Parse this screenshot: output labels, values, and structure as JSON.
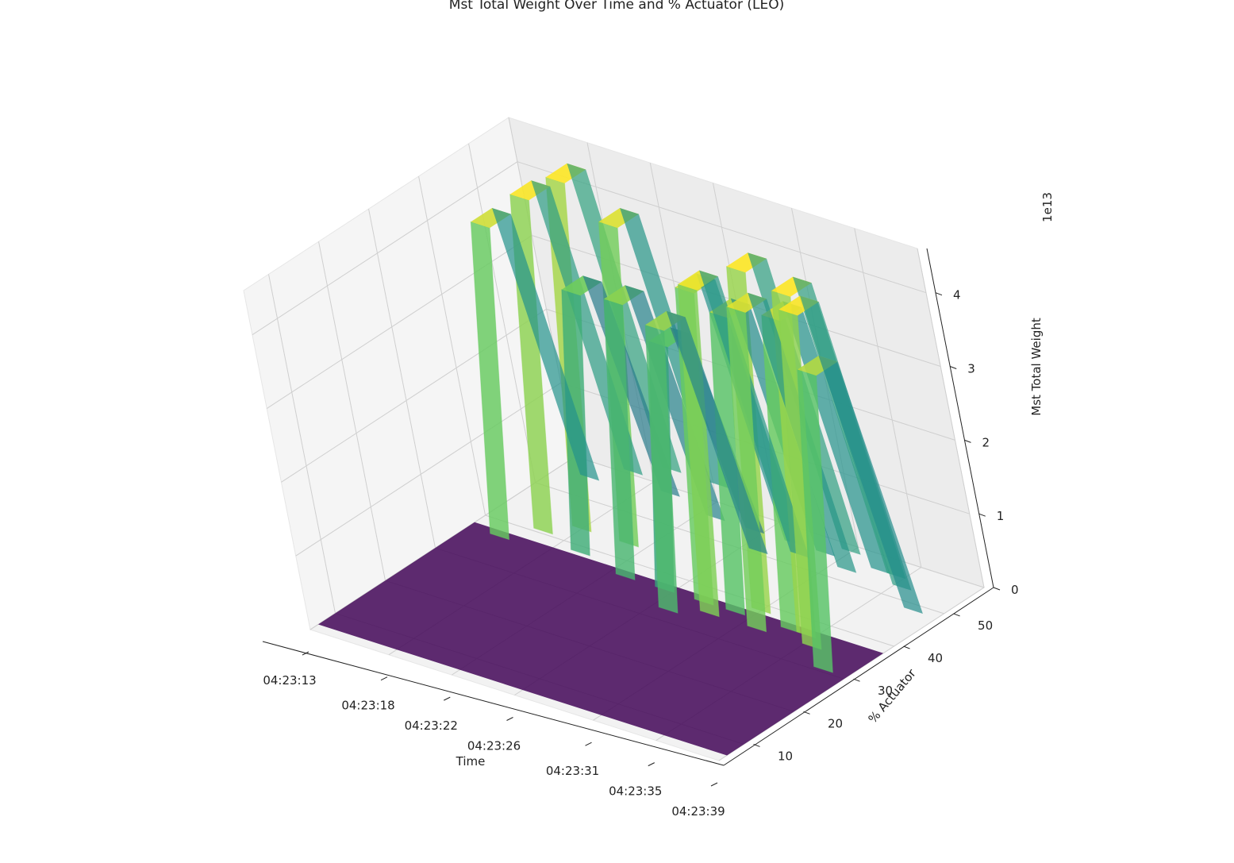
{
  "chart_data": {
    "type": "surface3d",
    "title": "Mst Total Weight Over Time and % Actuator (LEO)",
    "xlabel": "Time",
    "ylabel": "% Actuator",
    "zlabel": "Mst Total Weight",
    "z_offset_label": "1e13",
    "x_ticks": [
      "04:23:13",
      "04:23:18",
      "04:23:22",
      "04:23:26",
      "04:23:31",
      "04:23:35",
      "04:23:39"
    ],
    "y_ticks": [
      "10",
      "20",
      "30",
      "40",
      "50"
    ],
    "z_ticks": [
      "0",
      "1",
      "2",
      "3",
      "4"
    ],
    "colormap": [
      "#440154",
      "#3b528b",
      "#21918c",
      "#5ec962",
      "#fde725"
    ],
    "x_values": [
      "04:23:13",
      "04:23:14",
      "04:23:15",
      "04:23:16",
      "04:23:17",
      "04:23:18",
      "04:23:19",
      "04:23:20",
      "04:23:21",
      "04:23:22",
      "04:23:23",
      "04:23:24",
      "04:23:25",
      "04:23:26",
      "04:23:27",
      "04:23:28",
      "04:23:29",
      "04:23:30",
      "04:23:31",
      "04:23:32",
      "04:23:33",
      "04:23:34",
      "04:23:35",
      "04:23:36",
      "04:23:37",
      "04:23:38",
      "04:23:39"
    ],
    "ylim": [
      5,
      58
    ],
    "zlim": [
      0,
      4.6
    ],
    "ridges": [
      {
        "time_index": 2.0,
        "actuator": 44,
        "z": 3.9
      },
      {
        "time_index": 3.5,
        "actuator": 48,
        "z": 4.2
      },
      {
        "time_index": 5.0,
        "actuator": 51,
        "z": 4.4
      },
      {
        "time_index": 6.5,
        "actuator": 46,
        "z": 3.2
      },
      {
        "time_index": 8.0,
        "actuator": 51,
        "z": 4.0
      },
      {
        "time_index": 10.0,
        "actuator": 44,
        "z": 3.4
      },
      {
        "time_index": 12.5,
        "actuator": 44,
        "z": 3.0
      },
      {
        "time_index": 14.0,
        "actuator": 40,
        "z": 3.5
      },
      {
        "time_index": 15.0,
        "actuator": 44,
        "z": 3.9
      },
      {
        "time_index": 16.0,
        "actuator": 42,
        "z": 4.1
      },
      {
        "time_index": 17.0,
        "actuator": 44,
        "z": 3.7
      },
      {
        "time_index": 18.0,
        "actuator": 46,
        "z": 4.3
      },
      {
        "time_index": 19.0,
        "actuator": 42,
        "z": 4.0
      },
      {
        "time_index": 20.5,
        "actuator": 44,
        "z": 3.9
      },
      {
        "time_index": 21.5,
        "actuator": 44,
        "z": 4.3
      },
      {
        "time_index": 22.5,
        "actuator": 42,
        "z": 4.2
      },
      {
        "time_index": 24.5,
        "actuator": 38,
        "z": 3.7
      }
    ]
  }
}
